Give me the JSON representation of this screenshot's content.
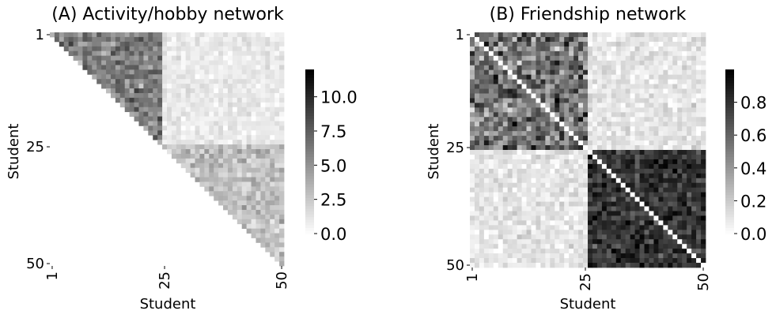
{
  "chart_data": [
    {
      "type": "heatmap",
      "title": "(A) Activity/hobby network",
      "xlabel": "Student",
      "ylabel": "Student",
      "n": 50,
      "xticks": [
        "1",
        "25",
        "50"
      ],
      "yticks": [
        "1",
        "25",
        "50"
      ],
      "tick_positions": [
        1,
        25,
        50
      ],
      "mask": "lower-triangle",
      "colormap": "Greys",
      "vmin": 0,
      "vmax": 12,
      "colorbar_ticks": [
        0.0,
        2.5,
        5.0,
        7.5,
        10.0
      ],
      "colorbar_labels": [
        "0.0",
        "2.5",
        "5.0",
        "7.5",
        "10.0"
      ],
      "blocks": [
        {
          "rows": [
            1,
            24
          ],
          "cols": [
            1,
            24
          ],
          "mean": 6.0,
          "spread": 3.5
        },
        {
          "rows": [
            1,
            24
          ],
          "cols": [
            25,
            50
          ],
          "mean": 1.0,
          "spread": 1.2
        },
        {
          "rows": [
            25,
            50
          ],
          "cols": [
            25,
            50
          ],
          "mean": 3.0,
          "spread": 2.2
        }
      ]
    },
    {
      "type": "heatmap",
      "title": "(B) Friendship network",
      "xlabel": "Student",
      "ylabel": "Student",
      "n": 50,
      "xticks": [
        "1",
        "25",
        "50"
      ],
      "yticks": [
        "1",
        "25",
        "50"
      ],
      "tick_positions": [
        1,
        25,
        50
      ],
      "mask": "none",
      "diagonal": 0,
      "colormap": "Greys",
      "vmin": 0,
      "vmax": 1,
      "colorbar_ticks": [
        0.0,
        0.2,
        0.4,
        0.6,
        0.8
      ],
      "colorbar_labels": [
        "0.0",
        "0.2",
        "0.4",
        "0.6",
        "0.8"
      ],
      "blocks": [
        {
          "rows": [
            1,
            25
          ],
          "cols": [
            1,
            25
          ],
          "mean": 0.55,
          "spread": 0.45
        },
        {
          "rows": [
            1,
            25
          ],
          "cols": [
            26,
            50
          ],
          "mean": 0.1,
          "spread": 0.15
        },
        {
          "rows": [
            26,
            50
          ],
          "cols": [
            1,
            25
          ],
          "mean": 0.1,
          "spread": 0.15
        },
        {
          "rows": [
            26,
            50
          ],
          "cols": [
            26,
            50
          ],
          "mean": 0.8,
          "spread": 0.25
        }
      ]
    }
  ]
}
